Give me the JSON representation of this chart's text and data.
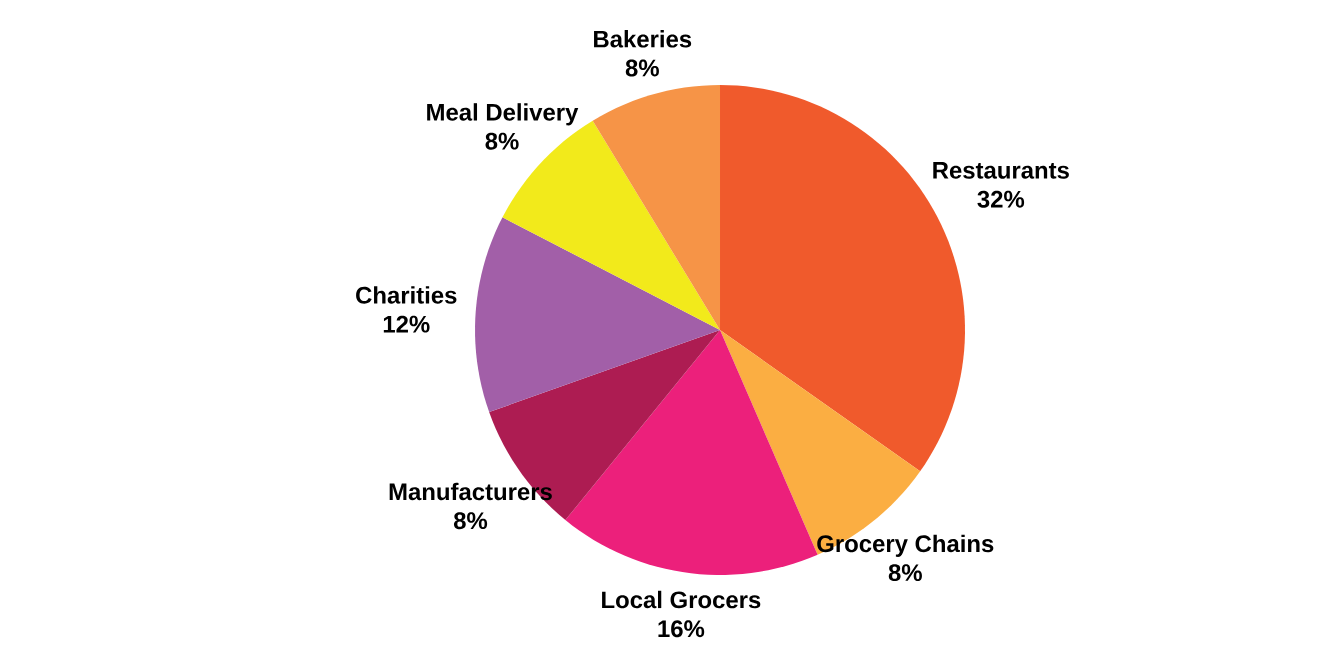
{
  "chart_data": {
    "type": "pie",
    "categories": [
      "Restaurants",
      "Grocery Chains",
      "Local Grocers",
      "Manufacturers",
      "Charities",
      "Meal Delivery",
      "Bakeries"
    ],
    "values": [
      32,
      8,
      16,
      8,
      12,
      8,
      8
    ],
    "value_labels": [
      "32%",
      "8%",
      "16%",
      "8%",
      "12%",
      "8%",
      "8%"
    ],
    "colors": [
      "#f05a2c",
      "#fbae42",
      "#ec207b",
      "#ad1c52",
      "#a25fa8",
      "#f2ea1b",
      "#f69447"
    ]
  }
}
